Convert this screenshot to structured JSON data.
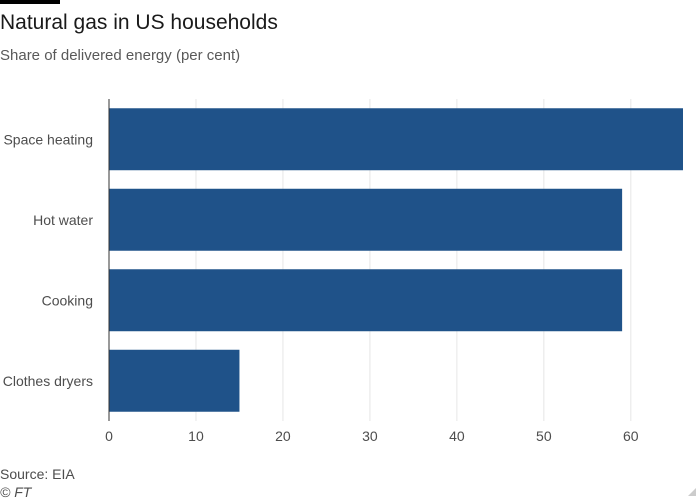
{
  "title": "Natural gas in US households",
  "subtitle": "Share of delivered energy (per cent)",
  "source": "Source: EIA",
  "credit": "© FT",
  "colors": {
    "bar": "#1f5289",
    "grid": "#e6e6e6",
    "axis": "#333333"
  },
  "chart_data": {
    "type": "bar",
    "orientation": "horizontal",
    "categories": [
      "Space heating",
      "Hot water",
      "Cooking",
      "Clothes dryers"
    ],
    "values": [
      66,
      59,
      59,
      15
    ],
    "xlim": [
      0,
      66
    ],
    "xticks": [
      0,
      10,
      20,
      30,
      40,
      50,
      60
    ],
    "xlabel": "",
    "ylabel": "",
    "grid": true,
    "legend": "none"
  }
}
